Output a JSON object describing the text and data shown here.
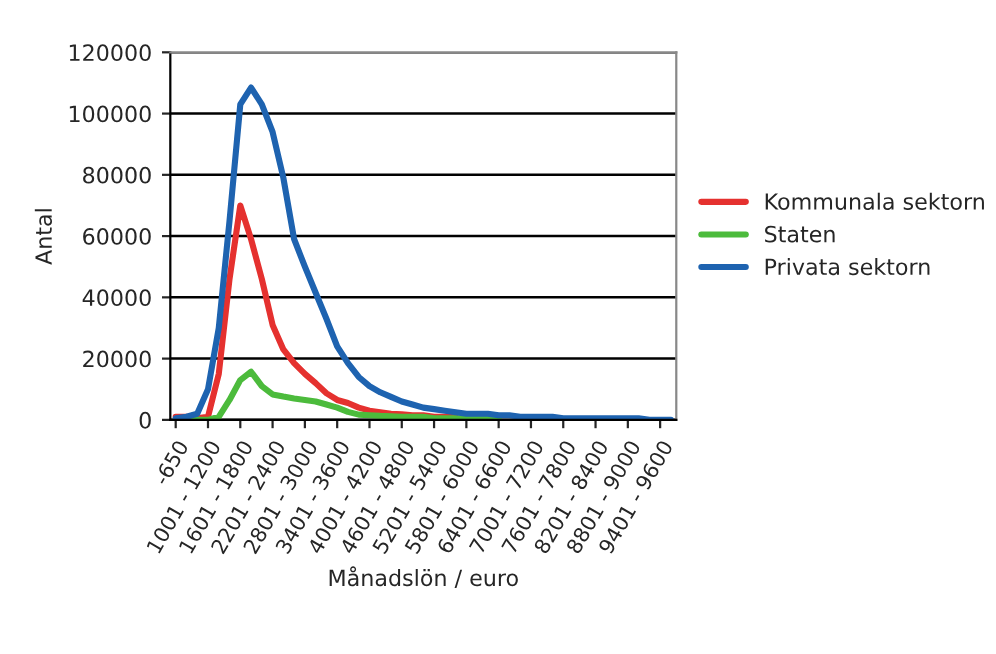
{
  "chart_data": {
    "type": "line",
    "xlabel": "Månadslön / euro",
    "ylabel": "Antal",
    "categories": [
      "-650",
      null,
      null,
      "1001 - 1200",
      null,
      null,
      "1601 - 1800",
      null,
      null,
      "2201 - 2400",
      null,
      null,
      "2801 - 3000",
      null,
      null,
      "3401 - 3600",
      null,
      null,
      "4001 - 4200",
      null,
      null,
      "4601 - 4800",
      null,
      null,
      "5201 - 5400",
      null,
      null,
      "5801 - 6000",
      null,
      null,
      "6401 - 6600",
      null,
      null,
      "7001 - 7200",
      null,
      null,
      "7601 - 7800",
      null,
      null,
      "8201 - 8400",
      null,
      null,
      "8801 - 9000",
      null,
      null,
      "9401 - 9600",
      null
    ],
    "series": [
      {
        "name": "Kommunala sektorn",
        "color": "#e5312f",
        "values": [
          1000,
          1000,
          500,
          1000,
          15000,
          46000,
          70000,
          59000,
          46000,
          31000,
          23000,
          18500,
          15000,
          12000,
          8700,
          6500,
          5500,
          4000,
          3000,
          2500,
          2000,
          1800,
          1500,
          1500,
          1000,
          1000,
          1000,
          null,
          null,
          null,
          null,
          null,
          null,
          null,
          null,
          null,
          null,
          null,
          null,
          null,
          null,
          null,
          null,
          null,
          null,
          null,
          null
        ]
      },
      {
        "name": "Staten",
        "color": "#4cbb3c",
        "values": [
          0,
          0,
          0,
          0,
          1000,
          6500,
          13000,
          15700,
          11000,
          8300,
          7600,
          7000,
          6500,
          6000,
          5000,
          4000,
          2600,
          1700,
          1500,
          1300,
          1200,
          1000,
          1000,
          1000,
          500,
          500,
          500,
          500,
          500,
          500,
          500,
          null,
          null,
          null,
          null,
          null,
          null,
          null,
          null,
          null,
          null,
          null,
          null,
          null,
          null,
          null,
          null
        ]
      },
      {
        "name": "Privata sektorn",
        "color": "#1e63b0",
        "values": [
          500,
          1000,
          2000,
          10000,
          30000,
          65000,
          103000,
          108500,
          103000,
          94000,
          79000,
          59000,
          50000,
          41500,
          33000,
          24000,
          18500,
          14000,
          11000,
          9000,
          7500,
          6000,
          5000,
          4000,
          3500,
          3000,
          2500,
          2000,
          2000,
          2000,
          1500,
          1500,
          1000,
          1000,
          1000,
          1000,
          500,
          500,
          500,
          500,
          500,
          500,
          500,
          500,
          0,
          0,
          0
        ]
      }
    ],
    "ylim": [
      0,
      120000
    ],
    "yticks": [
      0,
      20000,
      40000,
      60000,
      80000,
      100000,
      120000
    ],
    "grid": "y",
    "legend": "right",
    "marker": "none",
    "line_style": "solid"
  }
}
